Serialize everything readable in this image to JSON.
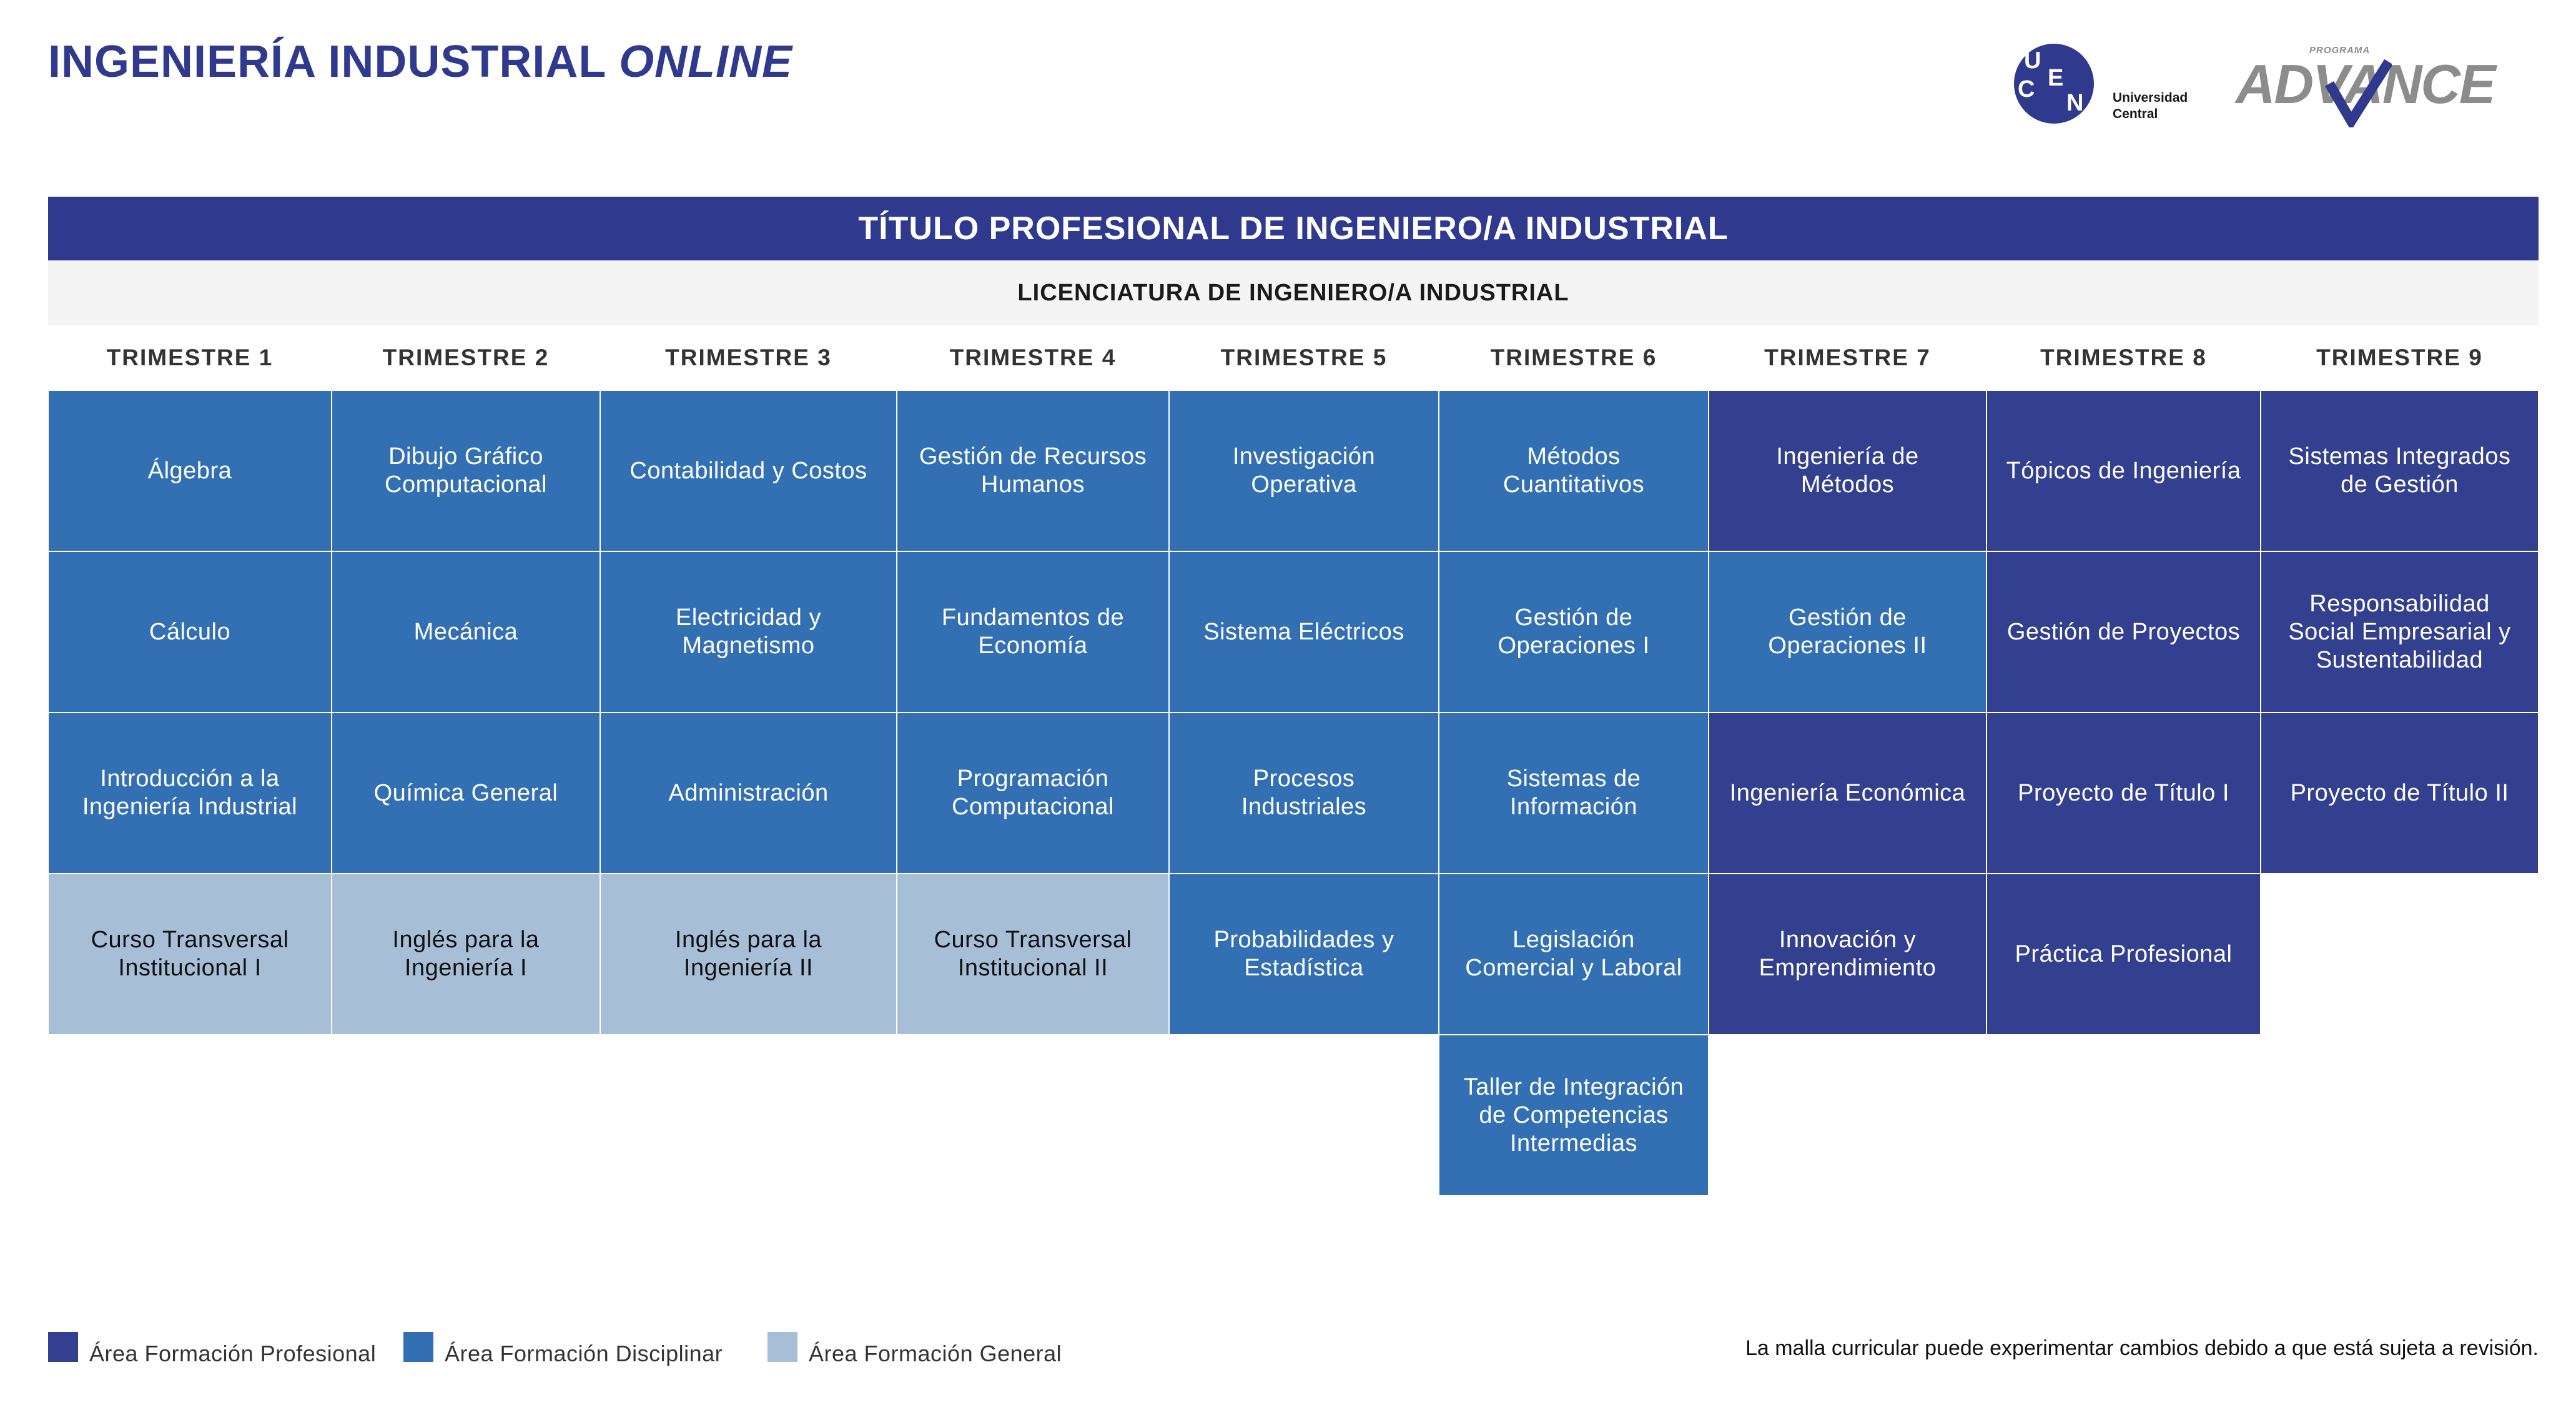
{
  "header": {
    "title_main": "INGENIERÍA INDUSTRIAL",
    "title_italic": "ONLINE"
  },
  "logos": {
    "ucen": {
      "letters": [
        "U",
        "C",
        "E",
        "N"
      ],
      "line1": "Universidad",
      "line2": "Central"
    },
    "advance": {
      "small": "PROGRAMA",
      "word": "ADVANCE"
    }
  },
  "banner": "TÍTULO PROFESIONAL DE INGENIERO/A INDUSTRIAL",
  "subbanner": "LICENCIATURA DE INGENIERO/A INDUSTRIAL",
  "colors": {
    "profesional": "#33408f",
    "disciplinar": "#3270b3",
    "general": "#a6bfd7"
  },
  "terms": [
    {
      "label": "TRIMESTRE 1",
      "courses": [
        {
          "name": "Álgebra",
          "area": "disc"
        },
        {
          "name": "Cálculo",
          "area": "disc"
        },
        {
          "name": "Introducción a la Ingeniería Industrial",
          "area": "disc"
        },
        {
          "name": "Curso Transversal Institucional I",
          "area": "gen"
        }
      ]
    },
    {
      "label": "TRIMESTRE 2",
      "courses": [
        {
          "name": "Dibujo Gráfico Computacional",
          "area": "disc"
        },
        {
          "name": "Mecánica",
          "area": "disc"
        },
        {
          "name": "Química General",
          "area": "disc"
        },
        {
          "name": "Inglés para la Ingeniería I",
          "area": "gen"
        }
      ]
    },
    {
      "label": "TRIMESTRE 3",
      "courses": [
        {
          "name": "Contabilidad y Costos",
          "area": "disc"
        },
        {
          "name": "Electricidad y Magnetismo",
          "area": "disc"
        },
        {
          "name": "Administración",
          "area": "disc"
        },
        {
          "name": "Inglés para la Ingeniería II",
          "area": "gen"
        }
      ]
    },
    {
      "label": "TRIMESTRE 4",
      "courses": [
        {
          "name": "Gestión de Recursos Humanos",
          "area": "disc"
        },
        {
          "name": "Fundamentos de Economía",
          "area": "disc"
        },
        {
          "name": "Programación Computacional",
          "area": "disc"
        },
        {
          "name": "Curso Transversal Institucional II",
          "area": "gen"
        }
      ]
    },
    {
      "label": "TRIMESTRE 5",
      "courses": [
        {
          "name": "Investigación Operativa",
          "area": "disc"
        },
        {
          "name": "Sistema Eléctricos",
          "area": "disc"
        },
        {
          "name": "Procesos Industriales",
          "area": "disc"
        },
        {
          "name": "Probabilidades y Estadística",
          "area": "disc"
        }
      ]
    },
    {
      "label": "TRIMESTRE 6",
      "courses": [
        {
          "name": "Métodos Cuantitativos",
          "area": "disc"
        },
        {
          "name": "Gestión de Operaciones I",
          "area": "disc"
        },
        {
          "name": "Sistemas de Información",
          "area": "disc"
        },
        {
          "name": "Legislación Comercial y Laboral",
          "area": "disc"
        },
        {
          "name": "Taller de Integración de Competencias Intermedias",
          "area": "disc"
        }
      ]
    },
    {
      "label": "TRIMESTRE 7",
      "courses": [
        {
          "name": "Ingeniería de Métodos",
          "area": "prof"
        },
        {
          "name": "Gestión de Operaciones II",
          "area": "disc"
        },
        {
          "name": "Ingeniería Económica",
          "area": "prof"
        },
        {
          "name": "Innovación y Emprendimiento",
          "area": "prof"
        }
      ]
    },
    {
      "label": "TRIMESTRE 8",
      "courses": [
        {
          "name": "Tópicos de Ingeniería",
          "area": "prof"
        },
        {
          "name": "Gestión de Proyectos",
          "area": "prof"
        },
        {
          "name": "Proyecto de Título I",
          "area": "prof"
        },
        {
          "name": "Práctica Profesional",
          "area": "prof"
        }
      ]
    },
    {
      "label": "TRIMESTRE 9",
      "courses": [
        {
          "name": "Sistemas Integrados de Gestión",
          "area": "prof"
        },
        {
          "name": "Responsabilidad Social Empresarial y Sustentabilidad",
          "area": "prof"
        },
        {
          "name": "Proyecto de Título II",
          "area": "prof"
        }
      ]
    }
  ],
  "legend": [
    {
      "label": "Área Formación Profesional",
      "area": "prof"
    },
    {
      "label": "Área Formación Disciplinar",
      "area": "disc"
    },
    {
      "label": "Área Formación General",
      "area": "gen"
    }
  ],
  "footnote": "La malla curricular puede experimentar cambios debido a que está sujeta a revisión."
}
